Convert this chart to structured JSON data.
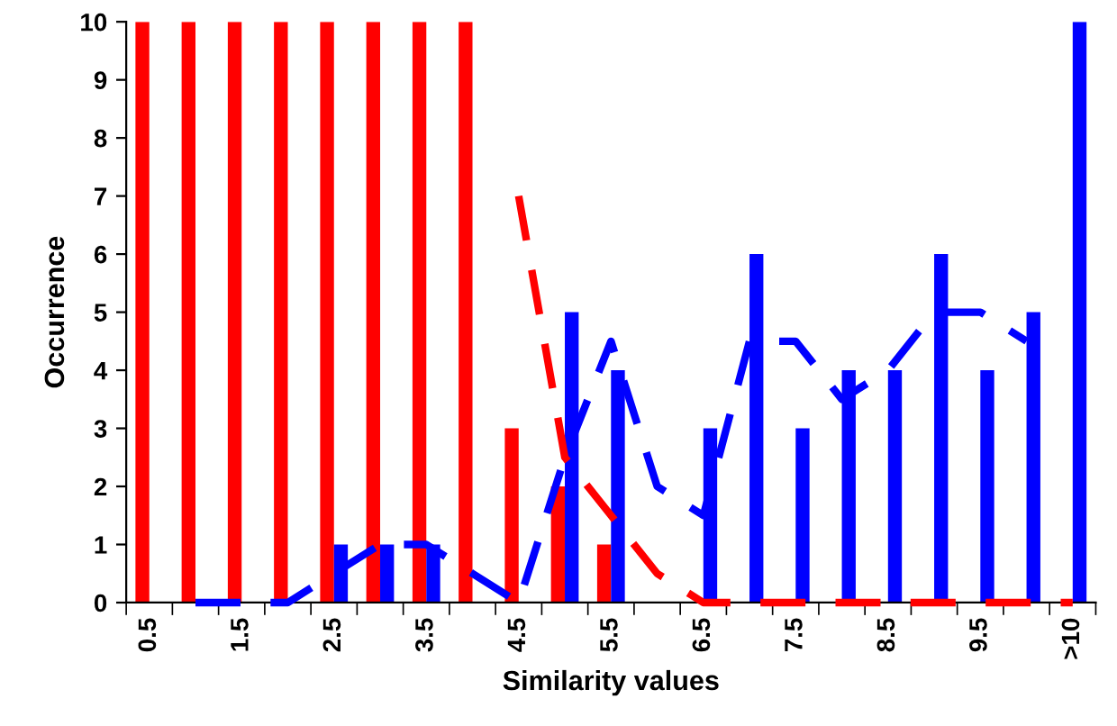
{
  "chart_data": {
    "type": "bar",
    "xlabel": "Similarity values",
    "ylabel": "Occurrence",
    "categories": [
      "0.5",
      null,
      "1.5",
      null,
      "2.5",
      null,
      "3.5",
      null,
      "4.5",
      null,
      "5.5",
      null,
      "6.5",
      null,
      "7.5",
      null,
      "8.5",
      null,
      "9.5",
      null,
      ">10"
    ],
    "series": [
      {
        "color": "#ff0000",
        "values": [
          10,
          10,
          10,
          10,
          10,
          10,
          10,
          10,
          3,
          2,
          1,
          0,
          0,
          0,
          0,
          0,
          0,
          0,
          0,
          0,
          0
        ]
      },
      {
        "color": "#0000ff",
        "values": [
          0,
          0,
          0,
          0,
          1,
          1,
          1,
          0,
          0,
          5,
          4,
          0,
          3,
          6,
          3,
          4,
          4,
          6,
          4,
          5,
          10
        ]
      },
      {
        "type": "line",
        "line_style": "dashed",
        "color": "#ff0000",
        "values": [
          null,
          null,
          null,
          null,
          null,
          null,
          null,
          null,
          7,
          2.5,
          1.5,
          0.5,
          0,
          0,
          0,
          0,
          0,
          0,
          0,
          0,
          0
        ]
      },
      {
        "type": "line",
        "line_style": "dashed",
        "color": "#0000ff",
        "values": [
          null,
          0,
          0,
          0,
          0.5,
          1,
          1,
          0.5,
          0,
          2.5,
          4.5,
          2,
          1.5,
          4.5,
          4.5,
          3.5,
          4,
          5,
          5,
          4.5,
          null
        ]
      }
    ],
    "ylim": [
      0,
      10
    ],
    "yticks": [
      0,
      1,
      2,
      3,
      4,
      5,
      6,
      7,
      8,
      9,
      10
    ],
    "grid": false,
    "legend": false
  }
}
